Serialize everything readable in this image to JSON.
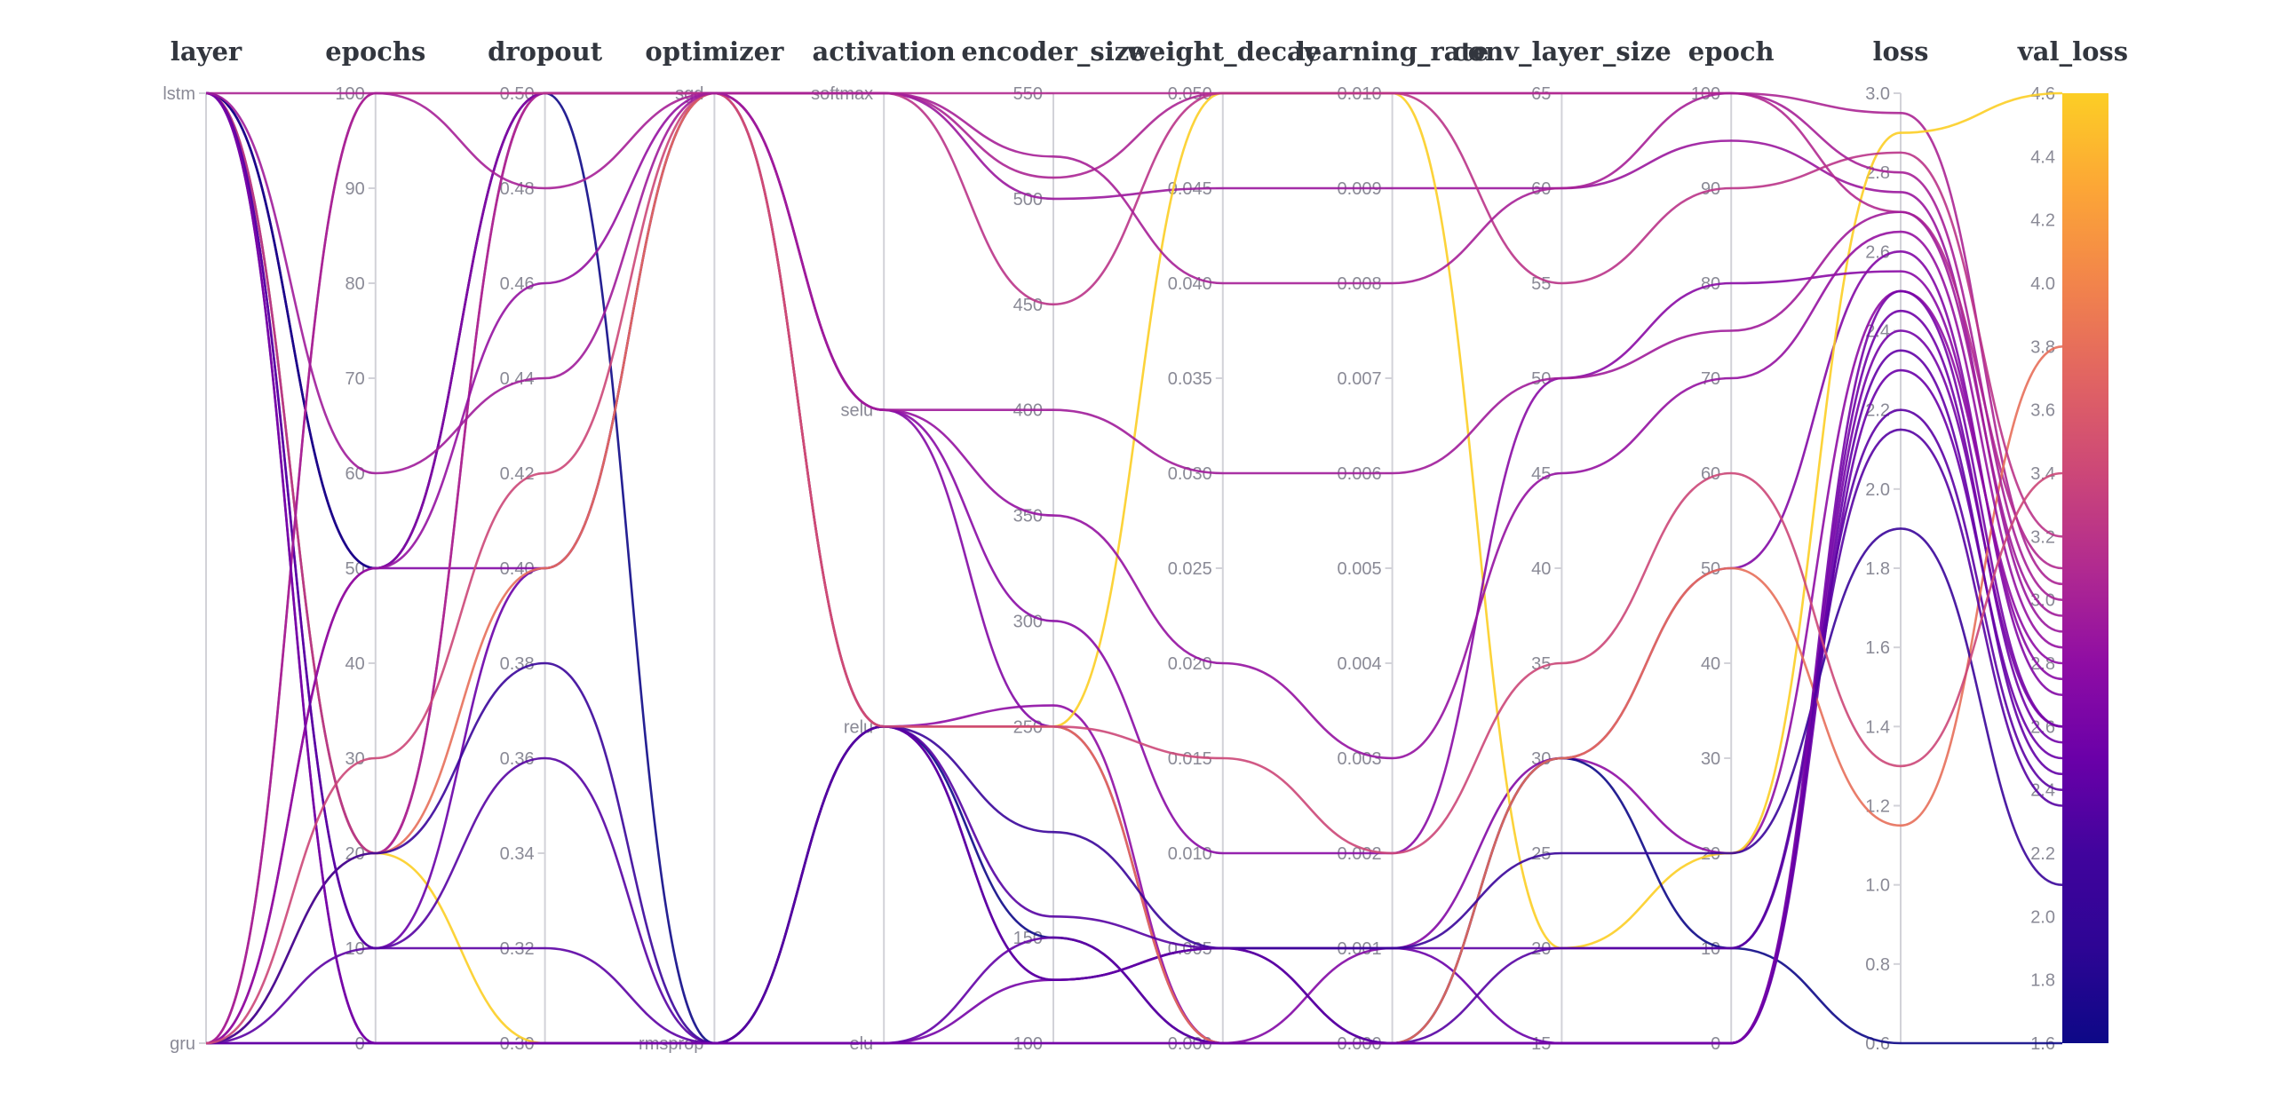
{
  "style": {
    "background": "#ffffff",
    "header_color": "#32363e",
    "tick_color": "#8a8a96",
    "axis_color": "#d2d2d8"
  },
  "chart_data": {
    "type": "parallel-coordinates",
    "title": "",
    "color_axis": {
      "key": "val_loss",
      "title": "val_loss",
      "min": 1.6,
      "max": 4.6,
      "ticks": [
        "4.6",
        "4.4",
        "4.2",
        "4.0",
        "3.8",
        "3.6",
        "3.4",
        "3.2",
        "3.0",
        "2.8",
        "2.6",
        "2.4",
        "2.2",
        "2.0",
        "1.8",
        "1.6"
      ]
    },
    "colormap": [
      "#0d0887",
      "#2d0594",
      "#41049d",
      "#6a00a8",
      "#8f0da4",
      "#b12a90",
      "#cc4778",
      "#e16462",
      "#f2844b",
      "#fca636",
      "#fcce25"
    ],
    "axes": [
      {
        "key": "layer",
        "title": "layer",
        "type": "cat",
        "categories": [
          "lstm",
          "gru"
        ]
      },
      {
        "key": "epochs",
        "title": "epochs",
        "type": "num",
        "min": 0,
        "max": 100,
        "ticks": [
          "100",
          "90",
          "80",
          "70",
          "60",
          "50",
          "40",
          "30",
          "20",
          "10",
          "0"
        ]
      },
      {
        "key": "dropout",
        "title": "dropout",
        "type": "num",
        "min": 0.3,
        "max": 0.5,
        "ticks": [
          "0.50",
          "0.48",
          "0.46",
          "0.44",
          "0.42",
          "0.40",
          "0.38",
          "0.36",
          "0.34",
          "0.32",
          "0.30"
        ]
      },
      {
        "key": "optimizer",
        "title": "optimizer",
        "type": "cat",
        "categories": [
          "sgd",
          "rmsprop"
        ]
      },
      {
        "key": "activation",
        "title": "activation",
        "type": "cat",
        "categories": [
          "softmax",
          "selu",
          "relu",
          "elu"
        ]
      },
      {
        "key": "encoder_size",
        "title": "encoder_size",
        "type": "num",
        "min": 100,
        "max": 550,
        "ticks": [
          "550",
          "500",
          "450",
          "400",
          "350",
          "300",
          "250",
          "150",
          "100"
        ]
      },
      {
        "key": "weight_decay",
        "title": "weight_decay",
        "type": "num",
        "min": 0,
        "max": 0.05,
        "ticks": [
          "0.050",
          "0.045",
          "0.040",
          "0.035",
          "0.030",
          "0.025",
          "0.020",
          "0.015",
          "0.010",
          "0.005",
          "0.000"
        ]
      },
      {
        "key": "learning_rate",
        "title": "learning_rate",
        "type": "num",
        "min": 0,
        "max": 0.01,
        "ticks": [
          "0.010",
          "0.009",
          "0.008",
          "0.007",
          "0.006",
          "0.005",
          "0.004",
          "0.003",
          "0.002",
          "0.001",
          "0.000"
        ]
      },
      {
        "key": "conv_layer_size",
        "title": "conv_layer_size",
        "type": "num",
        "min": 15,
        "max": 65,
        "ticks": [
          "65",
          "60",
          "55",
          "50",
          "45",
          "40",
          "35",
          "30",
          "25",
          "20",
          "15"
        ]
      },
      {
        "key": "epoch",
        "title": "epoch",
        "type": "num",
        "min": 0,
        "max": 100,
        "ticks": [
          "100",
          "90",
          "80",
          "70",
          "60",
          "50",
          "40",
          "30",
          "20",
          "10",
          "0"
        ]
      },
      {
        "key": "loss",
        "title": "loss",
        "type": "num",
        "min": 0.6,
        "max": 3.0,
        "ticks": [
          "3.0",
          "2.8",
          "2.6",
          "2.4",
          "2.2",
          "2.0",
          "1.8",
          "1.6",
          "1.4",
          "1.2",
          "1.0",
          "0.8",
          "0.6"
        ]
      }
    ],
    "runs": [
      {
        "layer": "lstm",
        "epochs": 100,
        "dropout": 0.5,
        "optimizer": "sgd",
        "activation": "softmax",
        "encoder_size": 510,
        "weight_decay": 0.05,
        "learning_rate": 0.01,
        "conv_layer_size": 65,
        "epoch": 100,
        "loss": 2.95,
        "val_loss": 3.05
      },
      {
        "layer": "lstm",
        "epochs": 50,
        "dropout": 0.5,
        "optimizer": "sgd",
        "activation": "softmax",
        "encoder_size": 500,
        "weight_decay": 0.045,
        "learning_rate": 0.009,
        "conv_layer_size": 60,
        "epoch": 95,
        "loss": 2.75,
        "val_loss": 2.9
      },
      {
        "layer": "lstm",
        "epochs": 50,
        "dropout": 0.4,
        "optimizer": "sgd",
        "activation": "selu",
        "encoder_size": 250,
        "weight_decay": 0.0,
        "learning_rate": 0.001,
        "conv_layer_size": 30,
        "epoch": 50,
        "loss": 2.6,
        "val_loss": 2.7
      },
      {
        "layer": "lstm",
        "epochs": 20,
        "dropout": 0.5,
        "optimizer": "sgd",
        "activation": "relu",
        "encoder_size": 260,
        "weight_decay": 0.0,
        "learning_rate": 0.0,
        "conv_layer_size": 30,
        "epoch": 20,
        "loss": 2.5,
        "val_loss": 2.8
      },
      {
        "layer": "lstm",
        "epochs": 20,
        "dropout": 0.3,
        "optimizer": "rmsprop",
        "activation": "relu",
        "encoder_size": 250,
        "weight_decay": 0.05,
        "learning_rate": 0.01,
        "conv_layer_size": 20,
        "epoch": 20,
        "loss": 2.9,
        "val_loss": 4.6
      },
      {
        "layer": "lstm",
        "epochs": 50,
        "dropout": 0.5,
        "optimizer": "rmsprop",
        "activation": "relu",
        "encoder_size": 150,
        "weight_decay": 0.0,
        "learning_rate": 0.0,
        "conv_layer_size": 30,
        "epoch": 10,
        "loss": 0.6,
        "val_loss": 1.6
      },
      {
        "layer": "lstm",
        "epochs": 10,
        "dropout": 0.4,
        "optimizer": "sgd",
        "activation": "relu",
        "encoder_size": 130,
        "weight_decay": 0.005,
        "learning_rate": 0.001,
        "conv_layer_size": 15,
        "epoch": 0,
        "loss": 2.3,
        "val_loss": 2.5
      },
      {
        "layer": "lstm",
        "epochs": 0,
        "dropout": 0.3,
        "optimizer": "rmsprop",
        "activation": "elu",
        "encoder_size": 130,
        "weight_decay": 0.005,
        "learning_rate": 0.0,
        "conv_layer_size": 15,
        "epoch": 0,
        "loss": 2.4,
        "val_loss": 2.6
      },
      {
        "layer": "lstm",
        "epochs": 20,
        "dropout": 0.5,
        "optimizer": "sgd",
        "activation": "softmax",
        "encoder_size": 550,
        "weight_decay": 0.05,
        "learning_rate": 0.01,
        "conv_layer_size": 65,
        "epoch": 100,
        "loss": 2.7,
        "val_loss": 3.1
      },
      {
        "layer": "gru",
        "epochs": 0,
        "dropout": 0.3,
        "optimizer": "rmsprop",
        "activation": "elu",
        "encoder_size": 100,
        "weight_decay": 0.0,
        "learning_rate": 0.0,
        "conv_layer_size": 15,
        "epoch": 0,
        "loss": 2.45,
        "val_loss": 2.55
      },
      {
        "layer": "gru",
        "epochs": 10,
        "dropout": 0.32,
        "optimizer": "rmsprop",
        "activation": "relu",
        "encoder_size": 130,
        "weight_decay": 0.005,
        "learning_rate": 0.001,
        "conv_layer_size": 20,
        "epoch": 10,
        "loss": 2.2,
        "val_loss": 2.4
      },
      {
        "layer": "gru",
        "epochs": 20,
        "dropout": 0.4,
        "optimizer": "sgd",
        "activation": "relu",
        "encoder_size": 250,
        "weight_decay": 0.0,
        "learning_rate": 0.0,
        "conv_layer_size": 30,
        "epoch": 50,
        "loss": 1.15,
        "val_loss": 3.8
      },
      {
        "layer": "gru",
        "epochs": 50,
        "dropout": 0.5,
        "optimizer": "sgd",
        "activation": "selu",
        "encoder_size": 300,
        "weight_decay": 0.01,
        "learning_rate": 0.002,
        "conv_layer_size": 50,
        "epoch": 80,
        "loss": 2.55,
        "val_loss": 2.75
      },
      {
        "layer": "gru",
        "epochs": 100,
        "dropout": 0.5,
        "optimizer": "sgd",
        "activation": "softmax",
        "encoder_size": 450,
        "weight_decay": 0.05,
        "learning_rate": 0.01,
        "conv_layer_size": 55,
        "epoch": 90,
        "loss": 2.85,
        "val_loss": 3.2
      },
      {
        "layer": "gru",
        "epochs": 0,
        "dropout": 0.3,
        "optimizer": "rmsprop",
        "activation": "elu",
        "encoder_size": 150,
        "weight_decay": 0.0,
        "learning_rate": 0.0,
        "conv_layer_size": 15,
        "epoch": 0,
        "loss": 2.35,
        "val_loss": 2.45
      },
      {
        "layer": "gru",
        "epochs": 20,
        "dropout": 0.38,
        "optimizer": "rmsprop",
        "activation": "relu",
        "encoder_size": 200,
        "weight_decay": 0.005,
        "learning_rate": 0.001,
        "conv_layer_size": 25,
        "epoch": 20,
        "loss": 1.9,
        "val_loss": 2.1
      },
      {
        "layer": "gru",
        "epochs": 50,
        "dropout": 0.46,
        "optimizer": "sgd",
        "activation": "selu",
        "encoder_size": 350,
        "weight_decay": 0.02,
        "learning_rate": 0.003,
        "conv_layer_size": 45,
        "epoch": 70,
        "loss": 2.65,
        "val_loss": 2.85
      },
      {
        "layer": "lstm",
        "epochs": 10,
        "dropout": 0.36,
        "optimizer": "rmsprop",
        "activation": "relu",
        "encoder_size": 160,
        "weight_decay": 0.005,
        "learning_rate": 0.0,
        "conv_layer_size": 20,
        "epoch": 10,
        "loss": 2.15,
        "val_loss": 2.35
      },
      {
        "layer": "gru",
        "epochs": 100,
        "dropout": 0.48,
        "optimizer": "sgd",
        "activation": "softmax",
        "encoder_size": 520,
        "weight_decay": 0.04,
        "learning_rate": 0.008,
        "conv_layer_size": 60,
        "epoch": 100,
        "loss": 2.8,
        "val_loss": 3.0
      },
      {
        "layer": "lstm",
        "epochs": 0,
        "dropout": 0.3,
        "optimizer": "rmsprop",
        "activation": "elu",
        "encoder_size": 100,
        "weight_decay": 0.0,
        "learning_rate": 0.0,
        "conv_layer_size": 15,
        "epoch": 0,
        "loss": 2.5,
        "val_loss": 2.6
      },
      {
        "layer": "gru",
        "epochs": 30,
        "dropout": 0.42,
        "optimizer": "sgd",
        "activation": "relu",
        "encoder_size": 250,
        "weight_decay": 0.015,
        "learning_rate": 0.002,
        "conv_layer_size": 35,
        "epoch": 60,
        "loss": 1.3,
        "val_loss": 3.4
      },
      {
        "layer": "lstm",
        "epochs": 60,
        "dropout": 0.44,
        "optimizer": "sgd",
        "activation": "selu",
        "encoder_size": 400,
        "weight_decay": 0.03,
        "learning_rate": 0.006,
        "conv_layer_size": 50,
        "epoch": 75,
        "loss": 2.7,
        "val_loss": 2.95
      }
    ]
  }
}
